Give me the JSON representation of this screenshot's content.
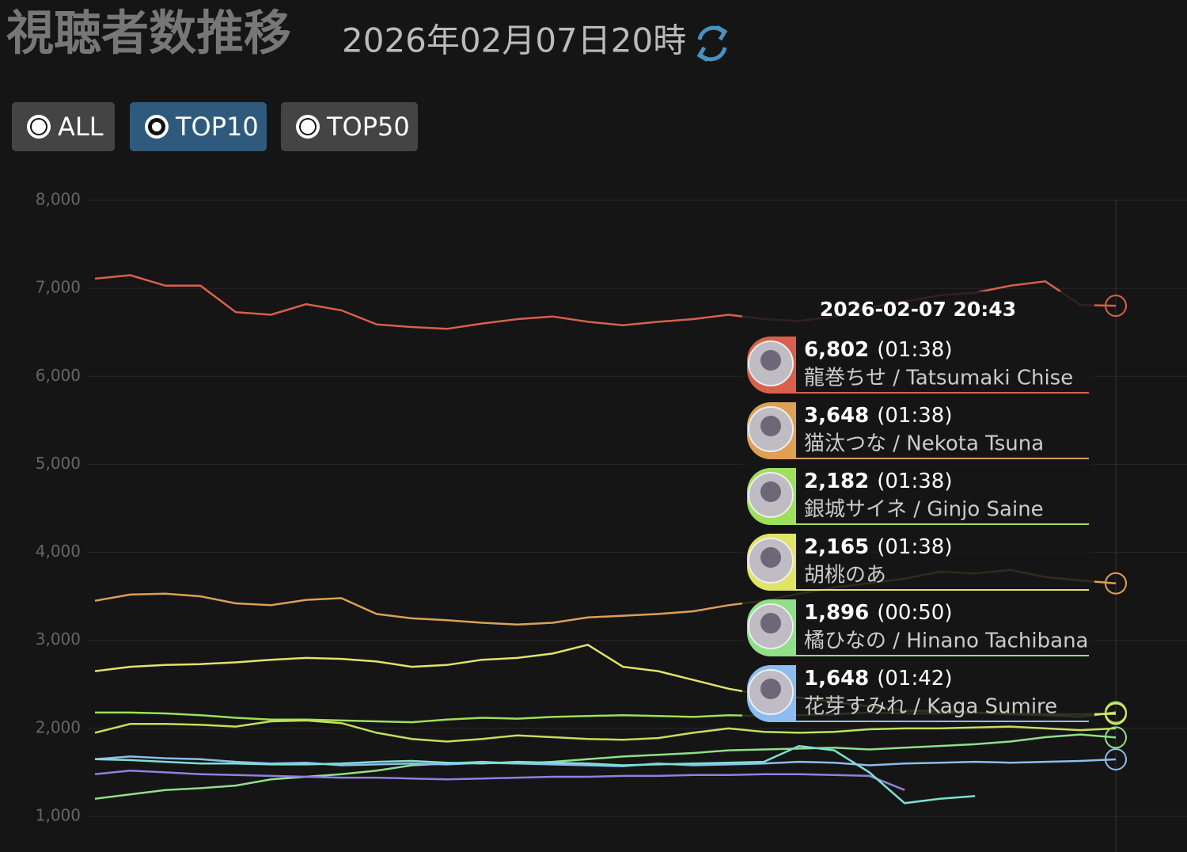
{
  "header": {
    "title": "視聴者数推移",
    "date": "2026年02月07日20時"
  },
  "buttons": [
    {
      "label": "ALL",
      "selected": false
    },
    {
      "label": "TOP10",
      "selected": true
    },
    {
      "label": "TOP50",
      "selected": false
    }
  ],
  "chart_data": {
    "type": "line",
    "ylim": [
      1000,
      8000
    ],
    "yticks": [
      {
        "value": 1000,
        "label": "1,000"
      },
      {
        "value": 2000,
        "label": "2,000"
      },
      {
        "value": 3000,
        "label": "3,000"
      },
      {
        "value": 4000,
        "label": "4,000"
      },
      {
        "value": 5000,
        "label": "5,000"
      },
      {
        "value": 6000,
        "label": "6,000"
      },
      {
        "value": 7000,
        "label": "7,000"
      },
      {
        "value": 8000,
        "label": "8,000"
      }
    ],
    "grid": true,
    "series": [
      {
        "name": "龍巻ちせ / Tatsumaki Chise",
        "color": "#d9604c",
        "values": [
          7110,
          7150,
          7030,
          7030,
          6730,
          6700,
          6820,
          6750,
          6590,
          6560,
          6540,
          6600,
          6650,
          6680,
          6620,
          6580,
          6620,
          6650,
          6700,
          6650,
          6630,
          6680,
          6780,
          6850,
          6920,
          6950,
          7030,
          7080,
          6810,
          6802
        ]
      },
      {
        "name": "猫汰つな / Nekota Tsuna",
        "color": "#dda055",
        "values": [
          3450,
          3520,
          3530,
          3500,
          3420,
          3400,
          3460,
          3480,
          3300,
          3250,
          3230,
          3200,
          3180,
          3200,
          3260,
          3280,
          3300,
          3330,
          3400,
          3450,
          3530,
          3600,
          3650,
          3700,
          3780,
          3760,
          3800,
          3720,
          3680,
          3648
        ]
      },
      {
        "name": "銀城サイネ / Ginjo Saine",
        "color": "#9ee05a",
        "values": [
          2180,
          2180,
          2170,
          2150,
          2120,
          2100,
          2100,
          2090,
          2080,
          2070,
          2100,
          2120,
          2110,
          2130,
          2140,
          2150,
          2140,
          2130,
          2150,
          2140,
          2150,
          2160,
          2180,
          2170,
          2170,
          2180,
          2160,
          2150,
          2130,
          2182
        ]
      },
      {
        "name": "胡桃のあ",
        "color": "#e2e468",
        "values": [
          2650,
          2700,
          2720,
          2730,
          2750,
          2780,
          2800,
          2790,
          2760,
          2700,
          2720,
          2780,
          2800,
          2850,
          2950,
          2700,
          2650,
          2550,
          2450,
          2380,
          2350,
          2300,
          2250,
          2200,
          2200,
          2180,
          2170,
          2160,
          2160,
          2165
        ]
      },
      {
        "name": "橘ひなの / Hinano Tachibana",
        "color": "#8fe088",
        "values": [
          1200,
          1250,
          1300,
          1320,
          1350,
          1420,
          1450,
          1480,
          1520,
          1580,
          1600,
          1620,
          1600,
          1620,
          1650,
          1680,
          1700,
          1720,
          1750,
          1760,
          1770,
          1780,
          1760,
          1780,
          1800,
          1820,
          1850,
          1900,
          1930,
          1896
        ]
      },
      {
        "name": "花芽すみれ / Kaga Sumire",
        "color": "#8cbcf0",
        "values": [
          1650,
          1680,
          1660,
          1650,
          1620,
          1600,
          1610,
          1580,
          1590,
          1600,
          1590,
          1610,
          1600,
          1590,
          1580,
          1570,
          1600,
          1580,
          1590,
          1600,
          1620,
          1610,
          1580,
          1600,
          1610,
          1620,
          1610,
          1620,
          1630,
          1648
        ]
      },
      {
        "color": "#c2e05a",
        "values": [
          1950,
          2050,
          2050,
          2040,
          2020,
          2080,
          2090,
          2060,
          1950,
          1880,
          1850,
          1880,
          1920,
          1900,
          1880,
          1870,
          1890,
          1950,
          2000,
          1960,
          1950,
          1960,
          1990,
          2000,
          2000,
          2010,
          2020,
          2000,
          1980,
          2000
        ]
      },
      {
        "color": "#9080e0",
        "values": [
          1480,
          1520,
          1500,
          1480,
          1470,
          1460,
          1450,
          1440,
          1440,
          1430,
          1420,
          1430,
          1440,
          1450,
          1450,
          1460,
          1460,
          1470,
          1470,
          1480,
          1480,
          1470,
          1460,
          1300,
          null,
          null,
          null,
          null,
          null,
          null
        ]
      },
      {
        "color": "#7ee0d0",
        "values": [
          1650,
          1640,
          1620,
          1600,
          1600,
          1590,
          1590,
          1600,
          1620,
          1630,
          1610,
          1600,
          1620,
          1610,
          1600,
          1580,
          1590,
          1600,
          1610,
          1620,
          1800,
          1750,
          1500,
          1150,
          1200,
          1230,
          null,
          null,
          null,
          null
        ]
      }
    ],
    "tooltip": {
      "title": "2026-02-07 20:43",
      "items": [
        {
          "value": "6,802",
          "time": "(01:38)",
          "name": "龍巻ちせ / Tatsumaki Chise",
          "color": "#d9604c"
        },
        {
          "value": "3,648",
          "time": "(01:38)",
          "name": "猫汰つな / Nekota Tsuna",
          "color": "#dda055"
        },
        {
          "value": "2,182",
          "time": "(01:38)",
          "name": "銀城サイネ / Ginjo Saine",
          "color": "#9ee05a"
        },
        {
          "value": "2,165",
          "time": "(01:38)",
          "name": "胡桃のあ",
          "color": "#e2e468"
        },
        {
          "value": "1,896",
          "time": "(00:50)",
          "name": "橘ひなの / Hinano Tachibana",
          "color": "#8fe088"
        },
        {
          "value": "1,648",
          "time": "(01:42)",
          "name": "花芽すみれ / Kaga Sumire",
          "color": "#8cbcf0"
        }
      ]
    }
  }
}
